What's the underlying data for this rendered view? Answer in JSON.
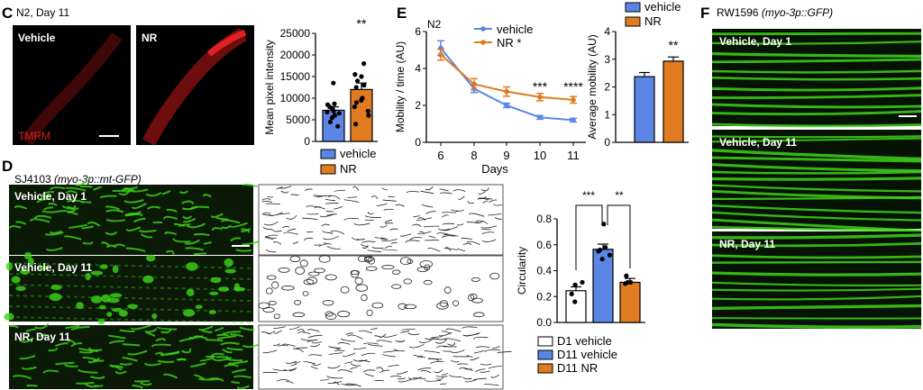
{
  "colors": {
    "vehicle": "#5b86e5",
    "nr": "#e07b22",
    "d1": "#ffffff",
    "tmrm": "#d42020",
    "gfp": "#3fd41a"
  },
  "panelC": {
    "label": "C",
    "title": "N2, Day 11",
    "images": [
      "Vehicle",
      "NR"
    ],
    "stain": "TMRM"
  },
  "panelD": {
    "label": "D",
    "title": "SJ4103",
    "title_italic": "(myo-3p::mt-GFP)",
    "images": [
      "Vehicle, Day 1",
      "Vehicle, Day 11",
      "NR, Day 11"
    ]
  },
  "panelE": {
    "label": "E",
    "title": "N2"
  },
  "panelF": {
    "label": "F",
    "title": "RW1596",
    "title_italic": "(myo-3p::GFP)",
    "images": [
      "Vehicle, Day 1",
      "Vehicle, Day 11",
      "NR, Day 11"
    ]
  },
  "chart_data": [
    {
      "id": "C",
      "type": "bar",
      "ylabel": "Mean pixel intensity",
      "ylim": [
        0,
        25000
      ],
      "yticks": [
        "0",
        "5000",
        "10000",
        "15000",
        "20000",
        "25000"
      ],
      "legend": [
        "vehicle",
        "NR"
      ],
      "significance": "**",
      "series": [
        {
          "name": "vehicle",
          "mean": 7200,
          "sem": 800,
          "points": [
            13500,
            8700,
            8500,
            8000,
            7500,
            7000,
            6800,
            6500,
            6000,
            5500,
            4500,
            3500
          ]
        },
        {
          "name": "NR",
          "mean": 12000,
          "sem": 1500,
          "points": [
            18000,
            15500,
            15000,
            14000,
            13000,
            12500,
            10000,
            9500,
            9000,
            8000,
            7000,
            6000,
            4000
          ]
        }
      ]
    },
    {
      "id": "D",
      "type": "bar",
      "ylabel": "Circularity",
      "ylim": [
        0,
        0.8
      ],
      "yticks": [
        "0.0",
        "0.2",
        "0.4",
        "0.6",
        "0.8"
      ],
      "legend": [
        "D1 vehicle",
        "D11 vehicle",
        "D11 NR"
      ],
      "significance": [
        "***",
        "**"
      ],
      "series": [
        {
          "name": "D1 vehicle",
          "mean": 0.245,
          "sem": 0.03,
          "points": [
            0.29,
            0.31,
            0.22,
            0.16
          ]
        },
        {
          "name": "D11 vehicle",
          "mean": 0.565,
          "sem": 0.04,
          "points": [
            0.76,
            0.58,
            0.56,
            0.55,
            0.52,
            0.49
          ]
        },
        {
          "name": "D11 NR",
          "mean": 0.31,
          "sem": 0.03,
          "points": [
            0.36,
            0.31,
            0.31,
            0.3
          ]
        }
      ]
    },
    {
      "id": "E-line",
      "type": "line",
      "xlabel": "Days",
      "ylabel": "Mobility / time (AU)",
      "ylim": [
        0,
        6
      ],
      "yticks": [
        "0",
        "2",
        "4",
        "6"
      ],
      "categories": [
        "6",
        "8",
        "9",
        "10",
        "11"
      ],
      "significance": [
        "",
        "",
        "",
        "***",
        "****"
      ],
      "series": [
        {
          "name": "vehicle",
          "values": [
            5.1,
            2.9,
            2.0,
            1.35,
            1.2
          ],
          "err": [
            0.4,
            0.2,
            0.12,
            0.1,
            0.1
          ]
        },
        {
          "name": "NR *",
          "values": [
            4.75,
            3.15,
            2.75,
            2.45,
            2.3
          ],
          "err": [
            0.3,
            0.3,
            0.25,
            0.2,
            0.18
          ]
        }
      ]
    },
    {
      "id": "E-bar",
      "type": "bar",
      "ylabel": "Average mobility (AU)",
      "ylim": [
        0,
        4
      ],
      "yticks": [
        "0",
        "1",
        "2",
        "3",
        "4"
      ],
      "legend": [
        "vehicle",
        "NR"
      ],
      "significance": "**",
      "series": [
        {
          "name": "vehicle",
          "mean": 2.37,
          "sem": 0.15
        },
        {
          "name": "NR",
          "mean": 2.93,
          "sem": 0.15
        }
      ]
    }
  ]
}
